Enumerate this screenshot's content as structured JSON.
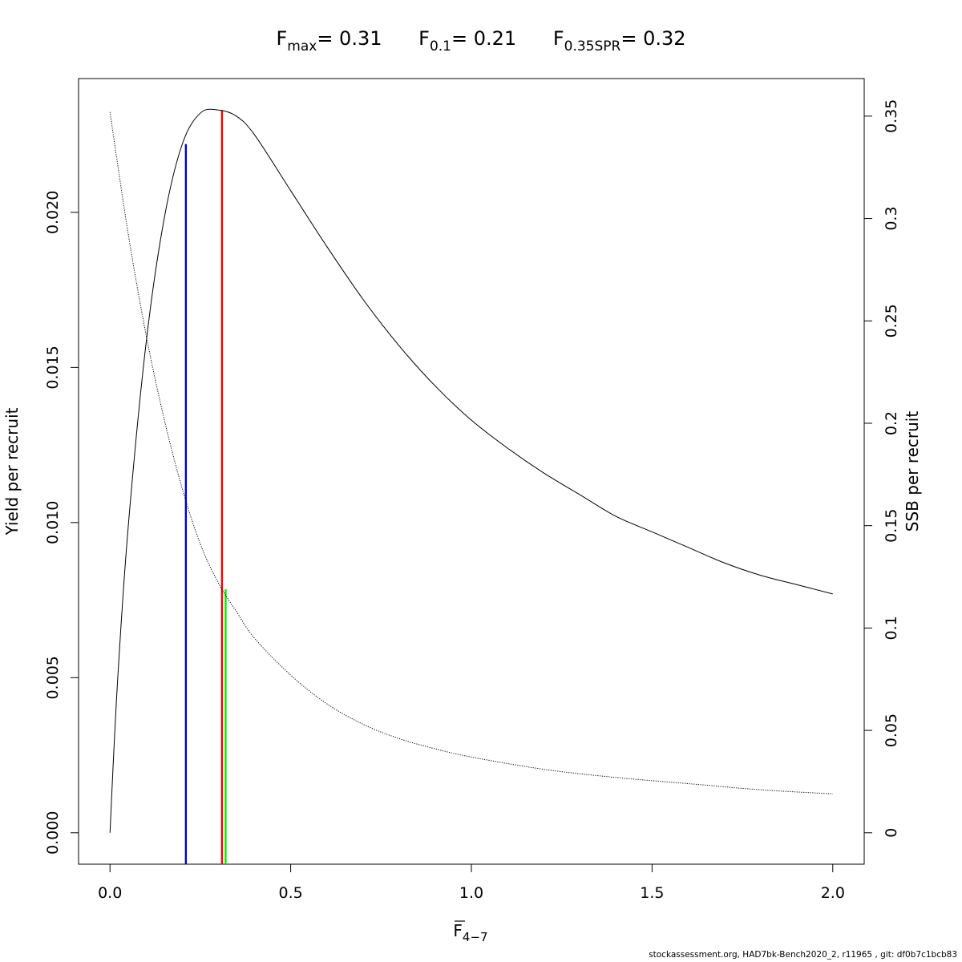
{
  "chart_data": {
    "type": "line",
    "title": {
      "fmax": {
        "symbol": "F",
        "sub": "max",
        "value": "= 0.31"
      },
      "f01": {
        "symbol": "F",
        "sub": "0.1",
        "value": "= 0.21"
      },
      "fspr": {
        "symbol": "F",
        "sub": "0.35SPR",
        "value": "= 0.32"
      }
    },
    "xlabel": {
      "symbol": "F",
      "sub": "4−7",
      "overline": true
    },
    "ylabel_left": "Yield per recruit",
    "ylabel_right": "SSB per recruit",
    "xlim": [
      0,
      2
    ],
    "ylim_left": [
      0,
      0.0233
    ],
    "ylim_right": [
      0,
      0.353
    ],
    "x_ticks": [
      {
        "value": 0.0,
        "label": "0.0"
      },
      {
        "value": 0.5,
        "label": "0.5"
      },
      {
        "value": 1.0,
        "label": "1.0"
      },
      {
        "value": 1.5,
        "label": "1.5"
      },
      {
        "value": 2.0,
        "label": "2.0"
      }
    ],
    "y_left_ticks": [
      {
        "value": 0.0,
        "label": "0.000"
      },
      {
        "value": 0.005,
        "label": "0.005"
      },
      {
        "value": 0.01,
        "label": "0.010"
      },
      {
        "value": 0.015,
        "label": "0.015"
      },
      {
        "value": 0.02,
        "label": "0.020"
      }
    ],
    "y_right_ticks": [
      {
        "value": 0.0,
        "label": "0"
      },
      {
        "value": 0.05,
        "label": "0.05"
      },
      {
        "value": 0.1,
        "label": "0.1"
      },
      {
        "value": 0.15,
        "label": "0.15"
      },
      {
        "value": 0.2,
        "label": "0.2"
      },
      {
        "value": 0.25,
        "label": "0.25"
      },
      {
        "value": 0.3,
        "label": "0.3"
      },
      {
        "value": 0.35,
        "label": "0.35"
      }
    ],
    "series": [
      {
        "axis": "left",
        "style": "solid",
        "color": "#000000",
        "x": [
          0,
          0.02,
          0.05,
          0.1,
          0.15,
          0.2,
          0.25,
          0.3,
          0.35,
          0.4,
          0.5,
          0.6,
          0.7,
          0.8,
          0.9,
          1.0,
          1.1,
          1.2,
          1.3,
          1.4,
          1.5,
          1.6,
          1.7,
          1.8,
          1.9,
          2.0
        ],
        "y": [
          0,
          0.0047,
          0.0098,
          0.0158,
          0.0198,
          0.0222,
          0.0232,
          0.0233,
          0.0231,
          0.0225,
          0.0207,
          0.0189,
          0.0172,
          0.0157,
          0.0144,
          0.0133,
          0.0124,
          0.0116,
          0.0109,
          0.0102,
          0.0097,
          0.0092,
          0.0087,
          0.0083,
          0.008,
          0.0077
        ]
      },
      {
        "axis": "right",
        "style": "dotted",
        "color": "#000000",
        "x": [
          0,
          0.05,
          0.1,
          0.15,
          0.2,
          0.25,
          0.3,
          0.35,
          0.4,
          0.5,
          0.6,
          0.7,
          0.8,
          0.9,
          1.0,
          1.2,
          1.4,
          1.6,
          1.8,
          2.0
        ],
        "y": [
          0.352,
          0.293,
          0.243,
          0.202,
          0.168,
          0.141,
          0.122,
          0.108,
          0.095,
          0.077,
          0.063,
          0.053,
          0.046,
          0.041,
          0.037,
          0.031,
          0.027,
          0.024,
          0.021,
          0.019
        ]
      }
    ],
    "reference_lines": [
      {
        "name": "F0.1",
        "x": 0.21,
        "axis": "left",
        "y_top": 0.0222,
        "color": "#0000cc"
      },
      {
        "name": "Fmax",
        "x": 0.31,
        "axis": "left",
        "y_top": 0.0233,
        "color": "#ff0000"
      },
      {
        "name": "F0.35SPR",
        "x": 0.32,
        "axis": "right",
        "y_top": 0.119,
        "color": "#00ee00"
      }
    ]
  },
  "footer": "stockassessment.org, HAD7bk-Bench2020_2, r11965 , git: df0b7c1bcb83"
}
